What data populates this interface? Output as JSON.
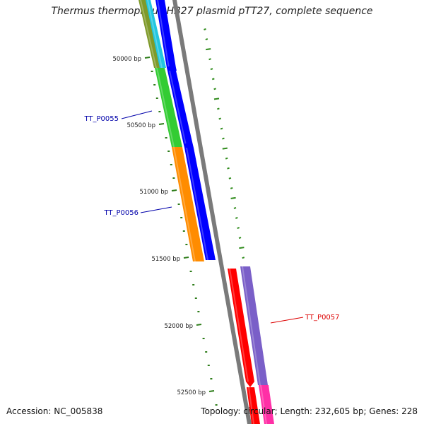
{
  "title": "Thermus thermophilus HB27 plasmid pTT27, complete sequence",
  "footer": {
    "accession": "Accession: NC_005838",
    "summary": "Topology: circular; Length: 232,605 bp; Genes: 228"
  },
  "ticks": [
    {
      "label": "50000 bp"
    },
    {
      "label": "50500 bp"
    },
    {
      "label": "51000 bp"
    },
    {
      "label": "51500 bp"
    },
    {
      "label": "52000 bp"
    },
    {
      "label": "52500 bp"
    }
  ],
  "genes": [
    {
      "id": "TT_P0055",
      "label": "TT_P0055",
      "color": "#0000aa"
    },
    {
      "id": "TT_P0056",
      "label": "TT_P0056",
      "color": "#0000aa"
    },
    {
      "id": "TT_P0057",
      "label": "TT_P0057",
      "color": "#dd0000"
    }
  ],
  "colors": {
    "backbone": "#7a7a7a",
    "olive": "#7f9a2a",
    "cyan": "#22c6e0",
    "green": "#33cc33",
    "orange": "#ff8c00",
    "blue": "#0000ff",
    "red": "#ff0000",
    "purple": "#7a5fc8",
    "magenta": "#ff2fa6",
    "tick": "#2e7d1a",
    "dash": "#2e8b1a"
  }
}
